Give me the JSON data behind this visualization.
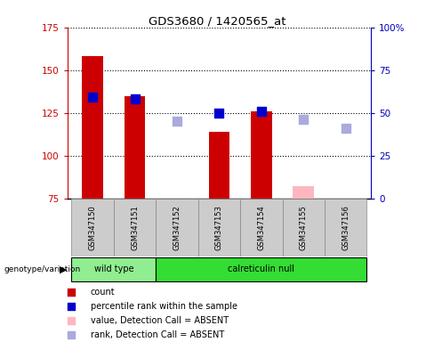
{
  "title": "GDS3680 / 1420565_at",
  "samples": [
    "GSM347150",
    "GSM347151",
    "GSM347152",
    "GSM347153",
    "GSM347154",
    "GSM347155",
    "GSM347156"
  ],
  "ylim_left": [
    75,
    175
  ],
  "ylim_right": [
    0,
    100
  ],
  "yticks_left": [
    75,
    100,
    125,
    150,
    175
  ],
  "yticks_right": [
    0,
    25,
    50,
    75,
    100
  ],
  "ytick_labels_right": [
    "0",
    "25",
    "50",
    "75",
    "100%"
  ],
  "red_bars_present_indices": [
    0,
    1,
    3,
    4
  ],
  "red_bars_present_tops": [
    158,
    135,
    114,
    126
  ],
  "red_bar_present_color": "#CC0000",
  "red_bars_absent_indices": [
    5
  ],
  "red_bars_absent_tops": [
    82
  ],
  "red_bar_absent_color": "#FFB6C1",
  "blue_sq_present_indices": [
    0,
    1,
    3,
    4
  ],
  "blue_sq_present_values": [
    134,
    133,
    125,
    126
  ],
  "blue_sq_present_color": "#0000CC",
  "blue_sq_absent_indices": [
    2,
    5,
    6
  ],
  "blue_sq_absent_values": [
    120,
    121,
    116
  ],
  "blue_sq_absent_color": "#AAAADD",
  "bar_bottom": 75,
  "bar_width": 0.5,
  "left_axis_color": "#CC0000",
  "right_axis_color": "#0000BB",
  "wt_color": "#90EE90",
  "cn_color": "#33DD33",
  "label_bg_color": "#CCCCCC",
  "legend_items": [
    {
      "label": "count",
      "color": "#CC0000"
    },
    {
      "label": "percentile rank within the sample",
      "color": "#0000CC"
    },
    {
      "label": "value, Detection Call = ABSENT",
      "color": "#FFB6C1"
    },
    {
      "label": "rank, Detection Call = ABSENT",
      "color": "#AAAADD"
    }
  ]
}
